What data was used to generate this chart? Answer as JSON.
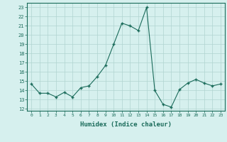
{
  "x": [
    0,
    1,
    2,
    3,
    4,
    5,
    6,
    7,
    8,
    9,
    10,
    11,
    12,
    13,
    14,
    15,
    16,
    17,
    18,
    19,
    20,
    21,
    22,
    23
  ],
  "y": [
    14.7,
    13.7,
    13.7,
    13.3,
    13.8,
    13.3,
    14.3,
    14.5,
    15.5,
    16.7,
    19.0,
    21.3,
    21.0,
    20.5,
    23.0,
    14.0,
    12.5,
    12.2,
    14.1,
    14.8,
    15.2,
    14.8,
    14.5,
    14.7
  ],
  "xlabel": "Humidex (Indice chaleur)",
  "ylabel_ticks": [
    12,
    13,
    14,
    15,
    16,
    17,
    18,
    19,
    20,
    21,
    22,
    23
  ],
  "ylim": [
    11.8,
    23.5
  ],
  "xlim": [
    -0.5,
    23.5
  ],
  "line_color": "#1a6b5a",
  "marker_color": "#1a6b5a",
  "bg_color": "#d6f0ee",
  "grid_color": "#b0d4d0",
  "tick_label_color": "#1a6b5a",
  "xlabel_color": "#1a6b5a"
}
